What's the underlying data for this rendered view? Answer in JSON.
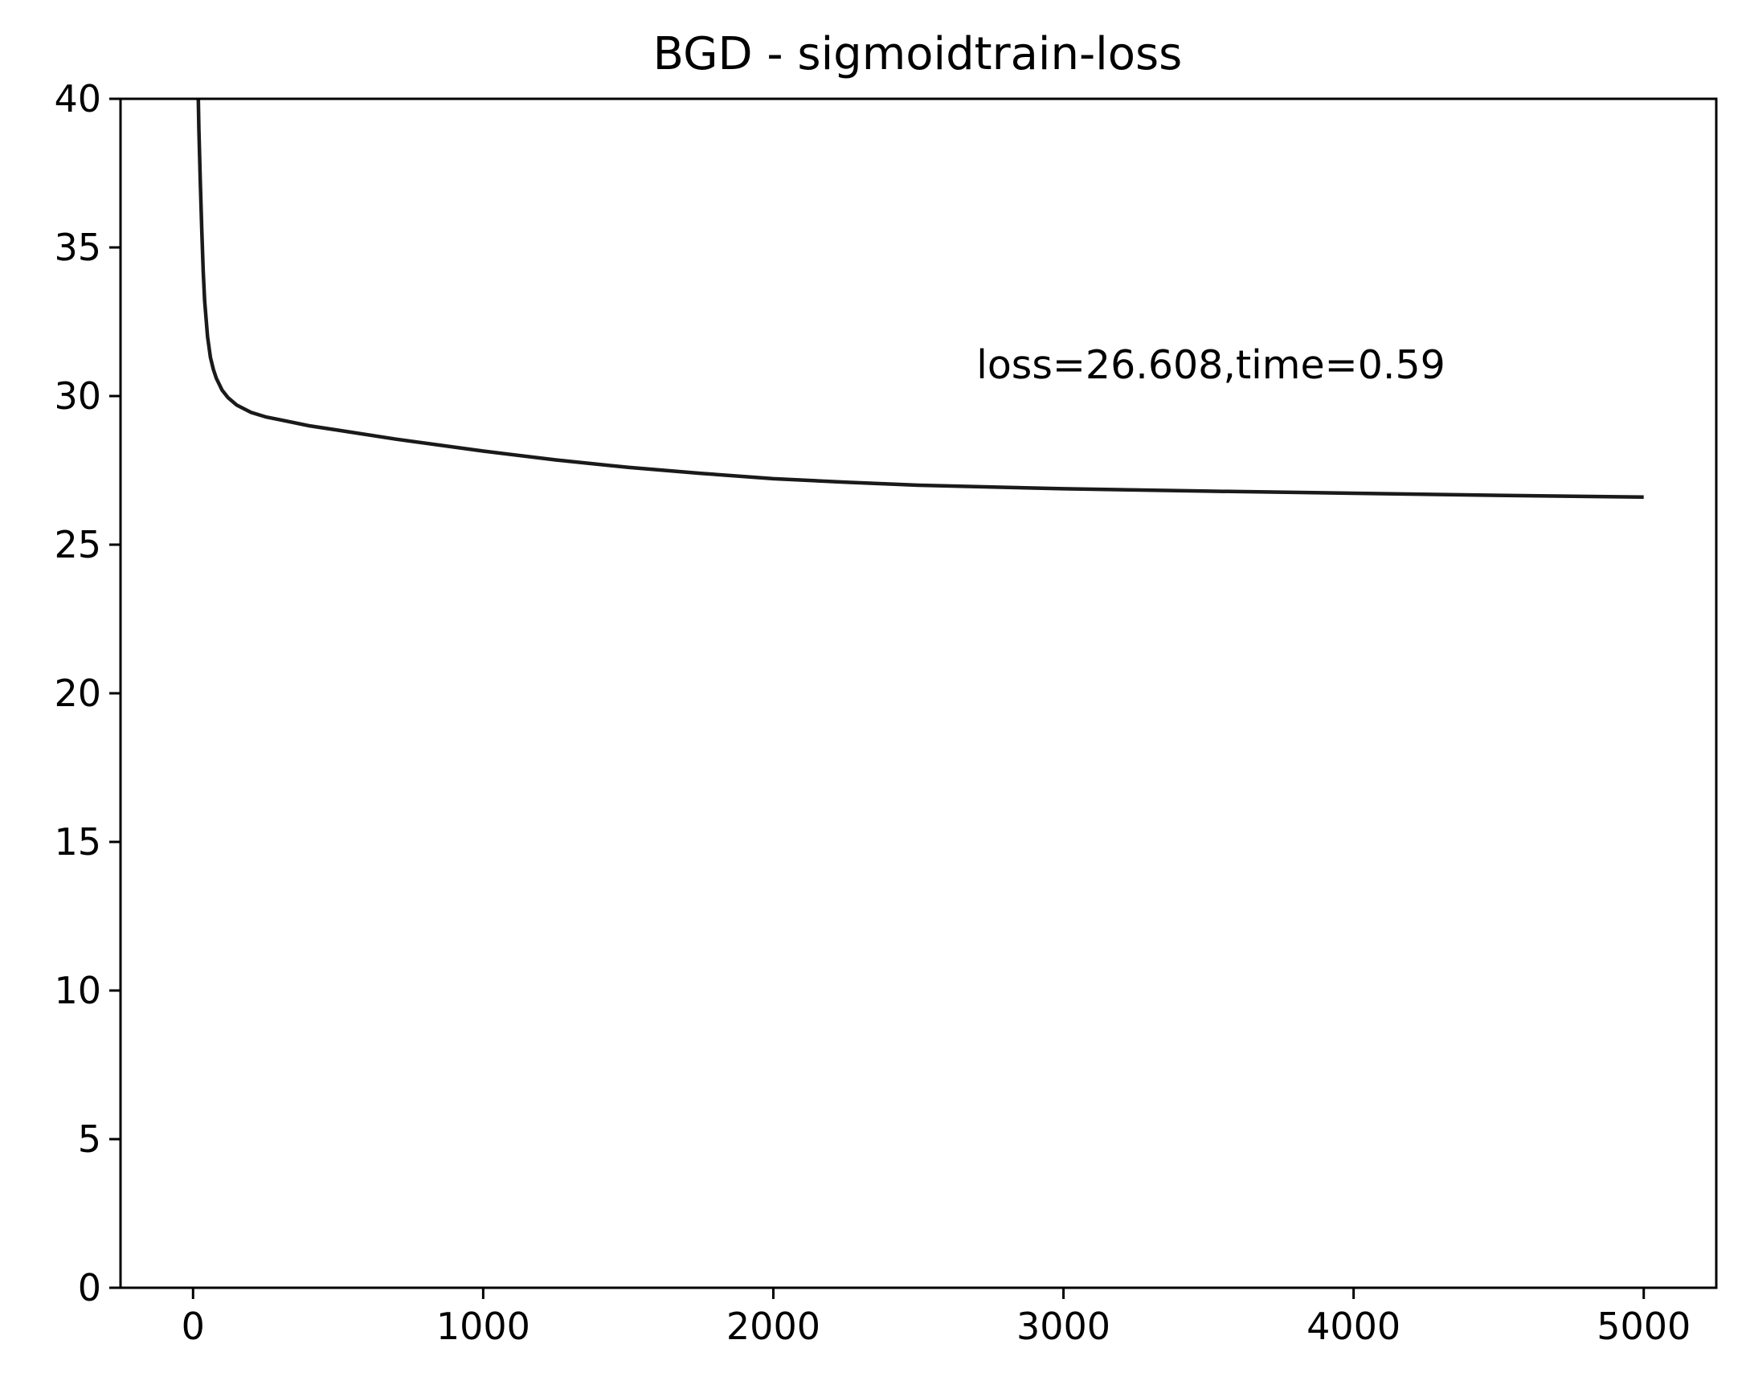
{
  "chart_data": {
    "type": "line",
    "title": "BGD - sigmoidtrain-loss",
    "xlabel": "",
    "ylabel": "",
    "xlim": [
      -250,
      5250
    ],
    "ylim": [
      0,
      40
    ],
    "x_ticks": [
      0,
      1000,
      2000,
      3000,
      4000,
      5000
    ],
    "y_ticks": [
      0,
      5,
      10,
      15,
      20,
      25,
      30,
      35,
      40
    ],
    "x_tick_labels": [
      "0",
      "1000",
      "2000",
      "3000",
      "4000",
      "5000"
    ],
    "y_tick_labels": [
      "0",
      "5",
      "10",
      "15",
      "20",
      "25",
      "30",
      "35",
      "40"
    ],
    "grid": false,
    "line_color": "#1a1a1a",
    "annotation": {
      "text": "loss=26.608,time=0.59",
      "x": 2700,
      "y": 30.6
    },
    "series": [
      {
        "x": [
          18,
          20,
          25,
          30,
          35,
          40,
          50,
          60,
          70,
          80,
          100,
          120,
          150,
          200,
          250,
          300,
          400,
          500,
          700,
          1000,
          1250,
          1500,
          1750,
          2000,
          2250,
          2500,
          3000,
          3500,
          4000,
          4500,
          5000
        ],
        "values": [
          40,
          39.0,
          37.2,
          35.6,
          34.2,
          33.2,
          32.0,
          31.3,
          30.9,
          30.6,
          30.2,
          29.95,
          29.7,
          29.45,
          29.3,
          29.2,
          29.0,
          28.85,
          28.55,
          28.15,
          27.85,
          27.6,
          27.4,
          27.22,
          27.1,
          27.0,
          26.88,
          26.8,
          26.73,
          26.66,
          26.6
        ]
      }
    ]
  }
}
